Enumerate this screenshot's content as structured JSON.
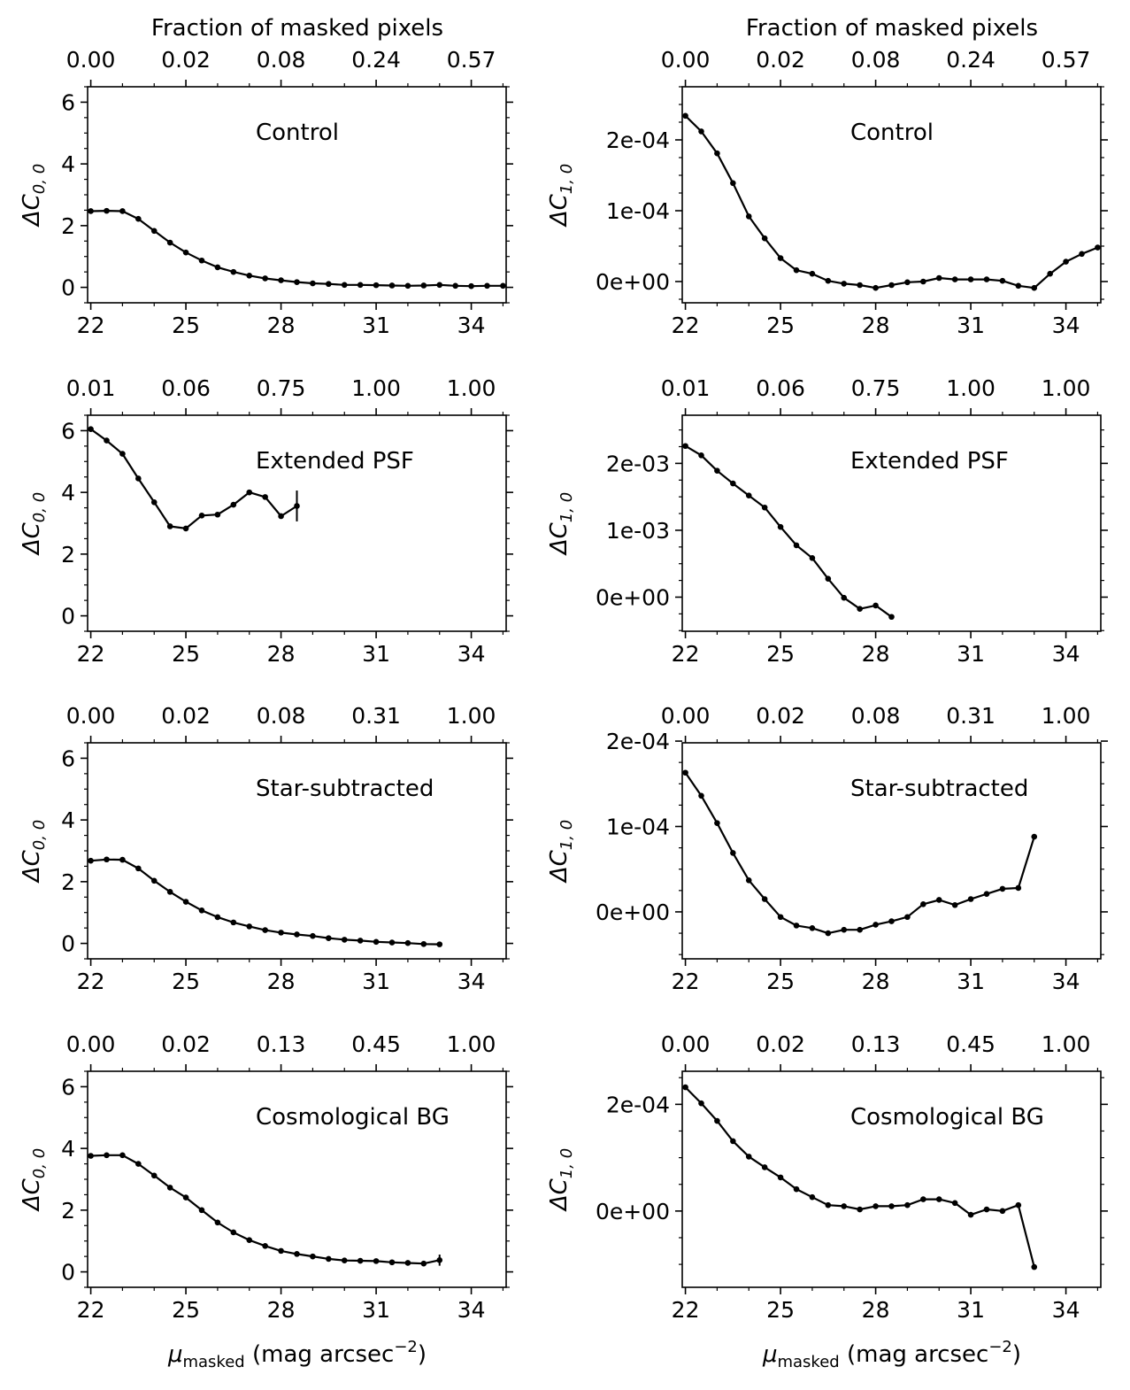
{
  "figure": {
    "xlabel_main": "μ",
    "xlabel_sub": "masked",
    "xlabel_rest": " (mag arcsec",
    "xlabel_exp": "−2",
    "xlabel_close": ")",
    "top_axis_title": "Fraction of masked pixels"
  },
  "chart_data": [
    {
      "type": "line",
      "id": "left-0",
      "title": "Control",
      "ylabel": "ΔC",
      "ysub": "0, 0",
      "top_labels": [
        "0.00",
        "0.02",
        "0.08",
        "0.24",
        "0.57"
      ],
      "xlim": [
        21.9,
        35.1
      ],
      "xticks": [
        22,
        25,
        28,
        31,
        34
      ],
      "ylim": [
        -0.5,
        6.5
      ],
      "yticks": [
        0,
        2,
        4,
        6
      ],
      "ytick_labels": [
        "0",
        "2",
        "4",
        "6"
      ],
      "x": [
        22,
        22.5,
        23,
        23.5,
        24,
        24.5,
        25,
        25.5,
        26,
        26.5,
        27,
        27.5,
        28,
        28.5,
        29,
        29.5,
        30,
        30.5,
        31,
        31.5,
        32,
        32.5,
        33,
        33.5,
        34,
        34.5,
        35
      ],
      "y": [
        2.47,
        2.48,
        2.47,
        2.22,
        1.83,
        1.45,
        1.13,
        0.87,
        0.65,
        0.5,
        0.38,
        0.29,
        0.23,
        0.17,
        0.13,
        0.11,
        0.08,
        0.08,
        0.07,
        0.06,
        0.05,
        0.06,
        0.08,
        0.05,
        0.04,
        0.05,
        0.05
      ]
    },
    {
      "type": "line",
      "id": "right-0",
      "title": "Control",
      "ylabel": "ΔC",
      "ysub": "1, 0",
      "top_labels": [
        "0.00",
        "0.02",
        "0.08",
        "0.24",
        "0.57"
      ],
      "xlim": [
        21.9,
        35.1
      ],
      "xticks": [
        22,
        25,
        28,
        31,
        34
      ],
      "ylim": [
        -3e-05,
        0.000275
      ],
      "yticks": [
        0,
        0.0001,
        0.0002
      ],
      "ytick_labels": [
        "0e+00",
        "1e-04",
        "2e-04"
      ],
      "x": [
        22,
        22.5,
        23,
        23.5,
        24,
        24.5,
        25,
        25.5,
        26,
        26.5,
        27,
        27.5,
        28,
        28.5,
        29,
        29.5,
        30,
        30.5,
        31,
        31.5,
        32,
        32.5,
        33,
        33.5,
        34,
        34.5,
        35
      ],
      "y": [
        0.000234,
        0.000212,
        0.000181,
        0.000139,
        9.2e-05,
        6.1e-05,
        3.3e-05,
        1.6e-05,
        1.1e-05,
        1e-06,
        -3e-06,
        -5e-06,
        -9e-06,
        -5e-06,
        -1e-06,
        0.0,
        5e-06,
        3e-06,
        3e-06,
        3e-06,
        1e-06,
        -6e-06,
        -9e-06,
        1.1e-05,
        2.8e-05,
        3.9e-05,
        4.8e-05
      ]
    },
    {
      "type": "line",
      "id": "left-1",
      "title": "Extended PSF",
      "ylabel": "ΔC",
      "ysub": "0, 0",
      "top_labels": [
        "0.01",
        "0.06",
        "0.75",
        "1.00",
        "1.00"
      ],
      "xlim": [
        21.9,
        35.1
      ],
      "xticks": [
        22,
        25,
        28,
        31,
        34
      ],
      "ylim": [
        -0.5,
        6.5
      ],
      "yticks": [
        0,
        2,
        4,
        6
      ],
      "ytick_labels": [
        "0",
        "2",
        "4",
        "6"
      ],
      "x": [
        22,
        22.5,
        23,
        23.5,
        24,
        24.5,
        25,
        25.5,
        26,
        26.5,
        27,
        27.5,
        28,
        28.5
      ],
      "y": [
        6.05,
        5.68,
        5.25,
        4.45,
        3.68,
        2.9,
        2.83,
        3.25,
        3.28,
        3.6,
        4.0,
        3.85,
        3.23,
        3.56
      ],
      "error_bars": [
        {
          "x": 28.5,
          "y": 3.56,
          "err": 0.5
        }
      ]
    },
    {
      "type": "line",
      "id": "right-1",
      "title": "Extended PSF",
      "ylabel": "ΔC",
      "ysub": "1, 0",
      "top_labels": [
        "0.01",
        "0.06",
        "0.75",
        "1.00",
        "1.00"
      ],
      "xlim": [
        21.9,
        35.1
      ],
      "xticks": [
        22,
        25,
        28,
        31,
        34
      ],
      "ylim": [
        -0.00051,
        0.00272
      ],
      "yticks": [
        0,
        0.001,
        0.002
      ],
      "ytick_labels": [
        "0e+00",
        "1e-03",
        "2e-03"
      ],
      "x": [
        22,
        22.5,
        23,
        23.5,
        24,
        24.5,
        25,
        25.5,
        26,
        26.5,
        27,
        27.5,
        28,
        28.5
      ],
      "y": [
        0.00226,
        0.00212,
        0.00189,
        0.0017,
        0.00152,
        0.00134,
        0.00105,
        0.000775,
        0.000585,
        0.000275,
        -9.5e-06,
        -0.000175,
        -0.000125,
        -0.000295
      ]
    },
    {
      "type": "line",
      "id": "left-2",
      "title": "Star-subtracted",
      "ylabel": "ΔC",
      "ysub": "0, 0",
      "top_labels": [
        "0.00",
        "0.02",
        "0.08",
        "0.31",
        "1.00"
      ],
      "xlim": [
        21.9,
        35.1
      ],
      "xticks": [
        22,
        25,
        28,
        31,
        34
      ],
      "ylim": [
        -0.5,
        6.5
      ],
      "yticks": [
        0,
        2,
        4,
        6
      ],
      "ytick_labels": [
        "0",
        "2",
        "4",
        "6"
      ],
      "x": [
        22,
        22.5,
        23,
        23.5,
        24,
        24.5,
        25,
        25.5,
        26,
        26.5,
        27,
        27.5,
        28,
        28.5,
        29,
        29.5,
        30,
        30.5,
        31,
        31.5,
        32,
        32.5,
        33
      ],
      "y": [
        2.68,
        2.72,
        2.71,
        2.43,
        2.03,
        1.67,
        1.35,
        1.07,
        0.85,
        0.68,
        0.55,
        0.43,
        0.35,
        0.29,
        0.24,
        0.17,
        0.12,
        0.09,
        0.05,
        0.03,
        0.01,
        -0.02,
        -0.03
      ]
    },
    {
      "type": "line",
      "id": "right-2",
      "title": "Star-subtracted",
      "ylabel": "ΔC",
      "ysub": "1, 0",
      "top_labels": [
        "0.00",
        "0.02",
        "0.08",
        "0.31",
        "1.00"
      ],
      "xlim": [
        21.9,
        35.1
      ],
      "xticks": [
        22,
        25,
        28,
        31,
        34
      ],
      "ylim": [
        -5.5e-05,
        0.000198
      ],
      "yticks": [
        0,
        0.0001,
        0.0002
      ],
      "ytick_labels": [
        "0e+00",
        "1e-04",
        "2e-04"
      ],
      "x": [
        22,
        22.5,
        23,
        23.5,
        24,
        24.5,
        25,
        25.5,
        26,
        26.5,
        27,
        27.5,
        28,
        28.5,
        29,
        29.5,
        30,
        30.5,
        31,
        31.5,
        32,
        32.5,
        33
      ],
      "y": [
        0.000163,
        0.000136,
        0.000104,
        6.9e-05,
        3.7e-05,
        1.5e-05,
        -6e-06,
        -1.6e-05,
        -1.9e-05,
        -2.5e-05,
        -2.1e-05,
        -2.1e-05,
        -1.5e-05,
        -1.1e-05,
        -6e-06,
        9e-06,
        1.4e-05,
        8e-06,
        1.5e-05,
        2.1e-05,
        2.7e-05,
        2.8e-05,
        8.8e-05
      ]
    },
    {
      "type": "line",
      "id": "left-3",
      "title": "Cosmological BG",
      "ylabel": "ΔC",
      "ysub": "0, 0",
      "top_labels": [
        "0.00",
        "0.02",
        "0.13",
        "0.45",
        "1.00"
      ],
      "xlim": [
        21.9,
        35.1
      ],
      "xticks": [
        22,
        25,
        28,
        31,
        34
      ],
      "ylim": [
        -0.5,
        6.5
      ],
      "yticks": [
        0,
        2,
        4,
        6
      ],
      "ytick_labels": [
        "0",
        "2",
        "4",
        "6"
      ],
      "x": [
        22,
        22.5,
        23,
        23.5,
        24,
        24.5,
        25,
        25.5,
        26,
        26.5,
        27,
        27.5,
        28,
        28.5,
        29,
        29.5,
        30,
        30.5,
        31,
        31.5,
        32,
        32.5,
        33
      ],
      "y": [
        3.76,
        3.78,
        3.78,
        3.5,
        3.12,
        2.73,
        2.41,
        2.0,
        1.6,
        1.28,
        1.03,
        0.84,
        0.68,
        0.58,
        0.5,
        0.42,
        0.37,
        0.36,
        0.35,
        0.31,
        0.29,
        0.27,
        0.38
      ],
      "error_bars": [
        {
          "x": 33,
          "y": 0.38,
          "err": 0.18
        }
      ]
    },
    {
      "type": "line",
      "id": "right-3",
      "title": "Cosmological BG",
      "ylabel": "ΔC",
      "ysub": "1, 0",
      "top_labels": [
        "0.00",
        "0.02",
        "0.13",
        "0.45",
        "1.00"
      ],
      "xlim": [
        21.9,
        35.1
      ],
      "xticks": [
        22,
        25,
        28,
        31,
        34
      ],
      "ylim": [
        -0.000143,
        0.000262
      ],
      "yticks": [
        0,
        0.0002
      ],
      "ytick_labels": [
        "0e+00",
        "2e-04"
      ],
      "x": [
        22,
        22.5,
        23,
        23.5,
        24,
        24.5,
        25,
        25.5,
        26,
        26.5,
        27,
        27.5,
        28,
        28.5,
        29,
        29.5,
        30,
        30.5,
        31,
        31.5,
        32,
        32.5,
        33
      ],
      "y": [
        0.000232,
        0.000202,
        0.000169,
        0.000131,
        0.000102,
        8.2e-05,
        6.3e-05,
        4.1e-05,
        2.6e-05,
        1.1e-05,
        9e-06,
        3e-06,
        9e-06,
        9e-06,
        1.1e-05,
        2.2e-05,
        2.2e-05,
        1.5e-05,
        -7e-06,
        3e-06,
        0.0,
        1.1e-05,
        -0.000105
      ]
    }
  ]
}
